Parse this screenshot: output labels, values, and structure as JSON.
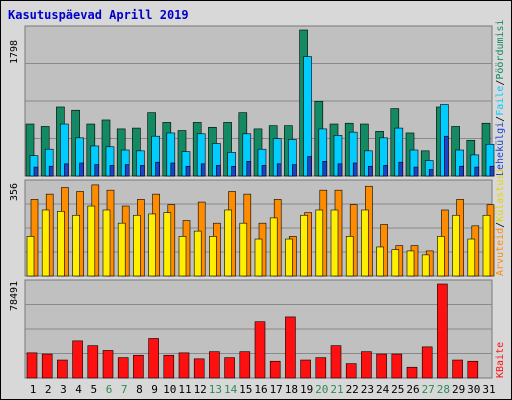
{
  "title": "Kasutuspäevad Aprill 2019",
  "days": [
    "1",
    "2",
    "3",
    "4",
    "5",
    "6",
    "7",
    "8",
    "9",
    "10",
    "11",
    "12",
    "13",
    "14",
    "15",
    "16",
    "17",
    "18",
    "19",
    "20",
    "21",
    "22",
    "23",
    "24",
    "25",
    "26",
    "27",
    "28",
    "29",
    "30",
    "31"
  ],
  "weekend_days": [
    "6",
    "7",
    "13",
    "14",
    "20",
    "21",
    "27",
    "28"
  ],
  "panels": {
    "top": {
      "axis_max_label": "1798",
      "legend": {
        "sep1": "/",
        "sep2": "/",
        "s1": "Lehekülgi",
        "s2": "Faile",
        "s3": "Pöördumisi"
      }
    },
    "mid": {
      "axis_max_label": "356",
      "legend": {
        "sep1": "/",
        "s1": "Arvuteid",
        "s2": "Külastusi"
      }
    },
    "bot": {
      "axis_max_label": "78491",
      "legend": {
        "s1": "KBaite"
      }
    }
  },
  "colors": {
    "background": "#d8d8d8",
    "plot_bg": "#c0c0c0",
    "hits": "#138a63",
    "files": "#00ccff",
    "pages": "#1a44d0",
    "sites": "#ff8c00",
    "visits": "#ffee00",
    "kbytes": "#ff1010",
    "title": "#0000cc",
    "weekend_label": "#2e8b57"
  },
  "chart_data": [
    {
      "type": "bar",
      "title": "Kasutuspäevad Aprill 2019",
      "categories": [
        "1",
        "2",
        "3",
        "4",
        "5",
        "6",
        "7",
        "8",
        "9",
        "10",
        "11",
        "12",
        "13",
        "14",
        "15",
        "16",
        "17",
        "18",
        "19",
        "20",
        "21",
        "22",
        "23",
        "24",
        "25",
        "26",
        "27",
        "28",
        "29",
        "30",
        "31"
      ],
      "ylim": [
        0,
        1798
      ],
      "series": [
        {
          "name": "Pöördumisi",
          "values": [
            640,
            610,
            850,
            810,
            640,
            690,
            580,
            590,
            780,
            660,
            560,
            660,
            600,
            660,
            780,
            580,
            620,
            620,
            1798,
            920,
            640,
            650,
            640,
            550,
            830,
            530,
            310,
            850,
            610,
            440,
            650
          ]
        },
        {
          "name": "Faile",
          "values": [
            250,
            330,
            640,
            470,
            370,
            360,
            320,
            310,
            490,
            530,
            300,
            520,
            400,
            290,
            520,
            330,
            460,
            450,
            1470,
            580,
            500,
            540,
            310,
            470,
            590,
            320,
            190,
            880,
            320,
            260,
            390
          ]
        },
        {
          "name": "Lehekülgi",
          "values": [
            110,
            120,
            150,
            160,
            140,
            130,
            140,
            130,
            170,
            160,
            120,
            150,
            130,
            120,
            180,
            130,
            150,
            140,
            240,
            180,
            150,
            160,
            120,
            130,
            170,
            110,
            80,
            490,
            120,
            110,
            120
          ]
        }
      ]
    },
    {
      "type": "bar",
      "categories": [
        "1",
        "2",
        "3",
        "4",
        "5",
        "6",
        "7",
        "8",
        "9",
        "10",
        "11",
        "12",
        "13",
        "14",
        "15",
        "16",
        "17",
        "18",
        "19",
        "20",
        "21",
        "22",
        "23",
        "24",
        "25",
        "26",
        "27",
        "28",
        "29",
        "30",
        "31"
      ],
      "ylim": [
        0,
        356
      ],
      "series": [
        {
          "name": "Arvuteid",
          "values": [
            290,
            310,
            335,
            320,
            345,
            325,
            265,
            290,
            310,
            270,
            210,
            280,
            200,
            320,
            310,
            200,
            290,
            150,
            240,
            325,
            325,
            270,
            340,
            195,
            115,
            115,
            95,
            250,
            290,
            190,
            270
          ]
        },
        {
          "name": "Külastusi",
          "values": [
            150,
            250,
            245,
            230,
            265,
            250,
            200,
            230,
            235,
            240,
            150,
            170,
            150,
            250,
            200,
            140,
            220,
            140,
            230,
            250,
            250,
            150,
            250,
            110,
            100,
            95,
            80,
            150,
            230,
            140,
            230
          ]
        }
      ]
    },
    {
      "type": "bar",
      "categories": [
        "1",
        "2",
        "3",
        "4",
        "5",
        "6",
        "7",
        "8",
        "9",
        "10",
        "11",
        "12",
        "13",
        "14",
        "15",
        "16",
        "17",
        "18",
        "19",
        "20",
        "21",
        "22",
        "23",
        "24",
        "25",
        "26",
        "27",
        "28",
        "29",
        "30",
        "31"
      ],
      "ylim": [
        0,
        78491
      ],
      "series": [
        {
          "name": "KBaite",
          "values": [
            21000,
            20000,
            15000,
            31000,
            27000,
            23000,
            17000,
            19000,
            33000,
            19000,
            21000,
            16000,
            22000,
            17000,
            22000,
            47000,
            14000,
            51000,
            15000,
            17000,
            27000,
            12000,
            22000,
            20000,
            20000,
            9000,
            26000,
            78491,
            15000,
            14000,
            0
          ]
        }
      ]
    }
  ]
}
